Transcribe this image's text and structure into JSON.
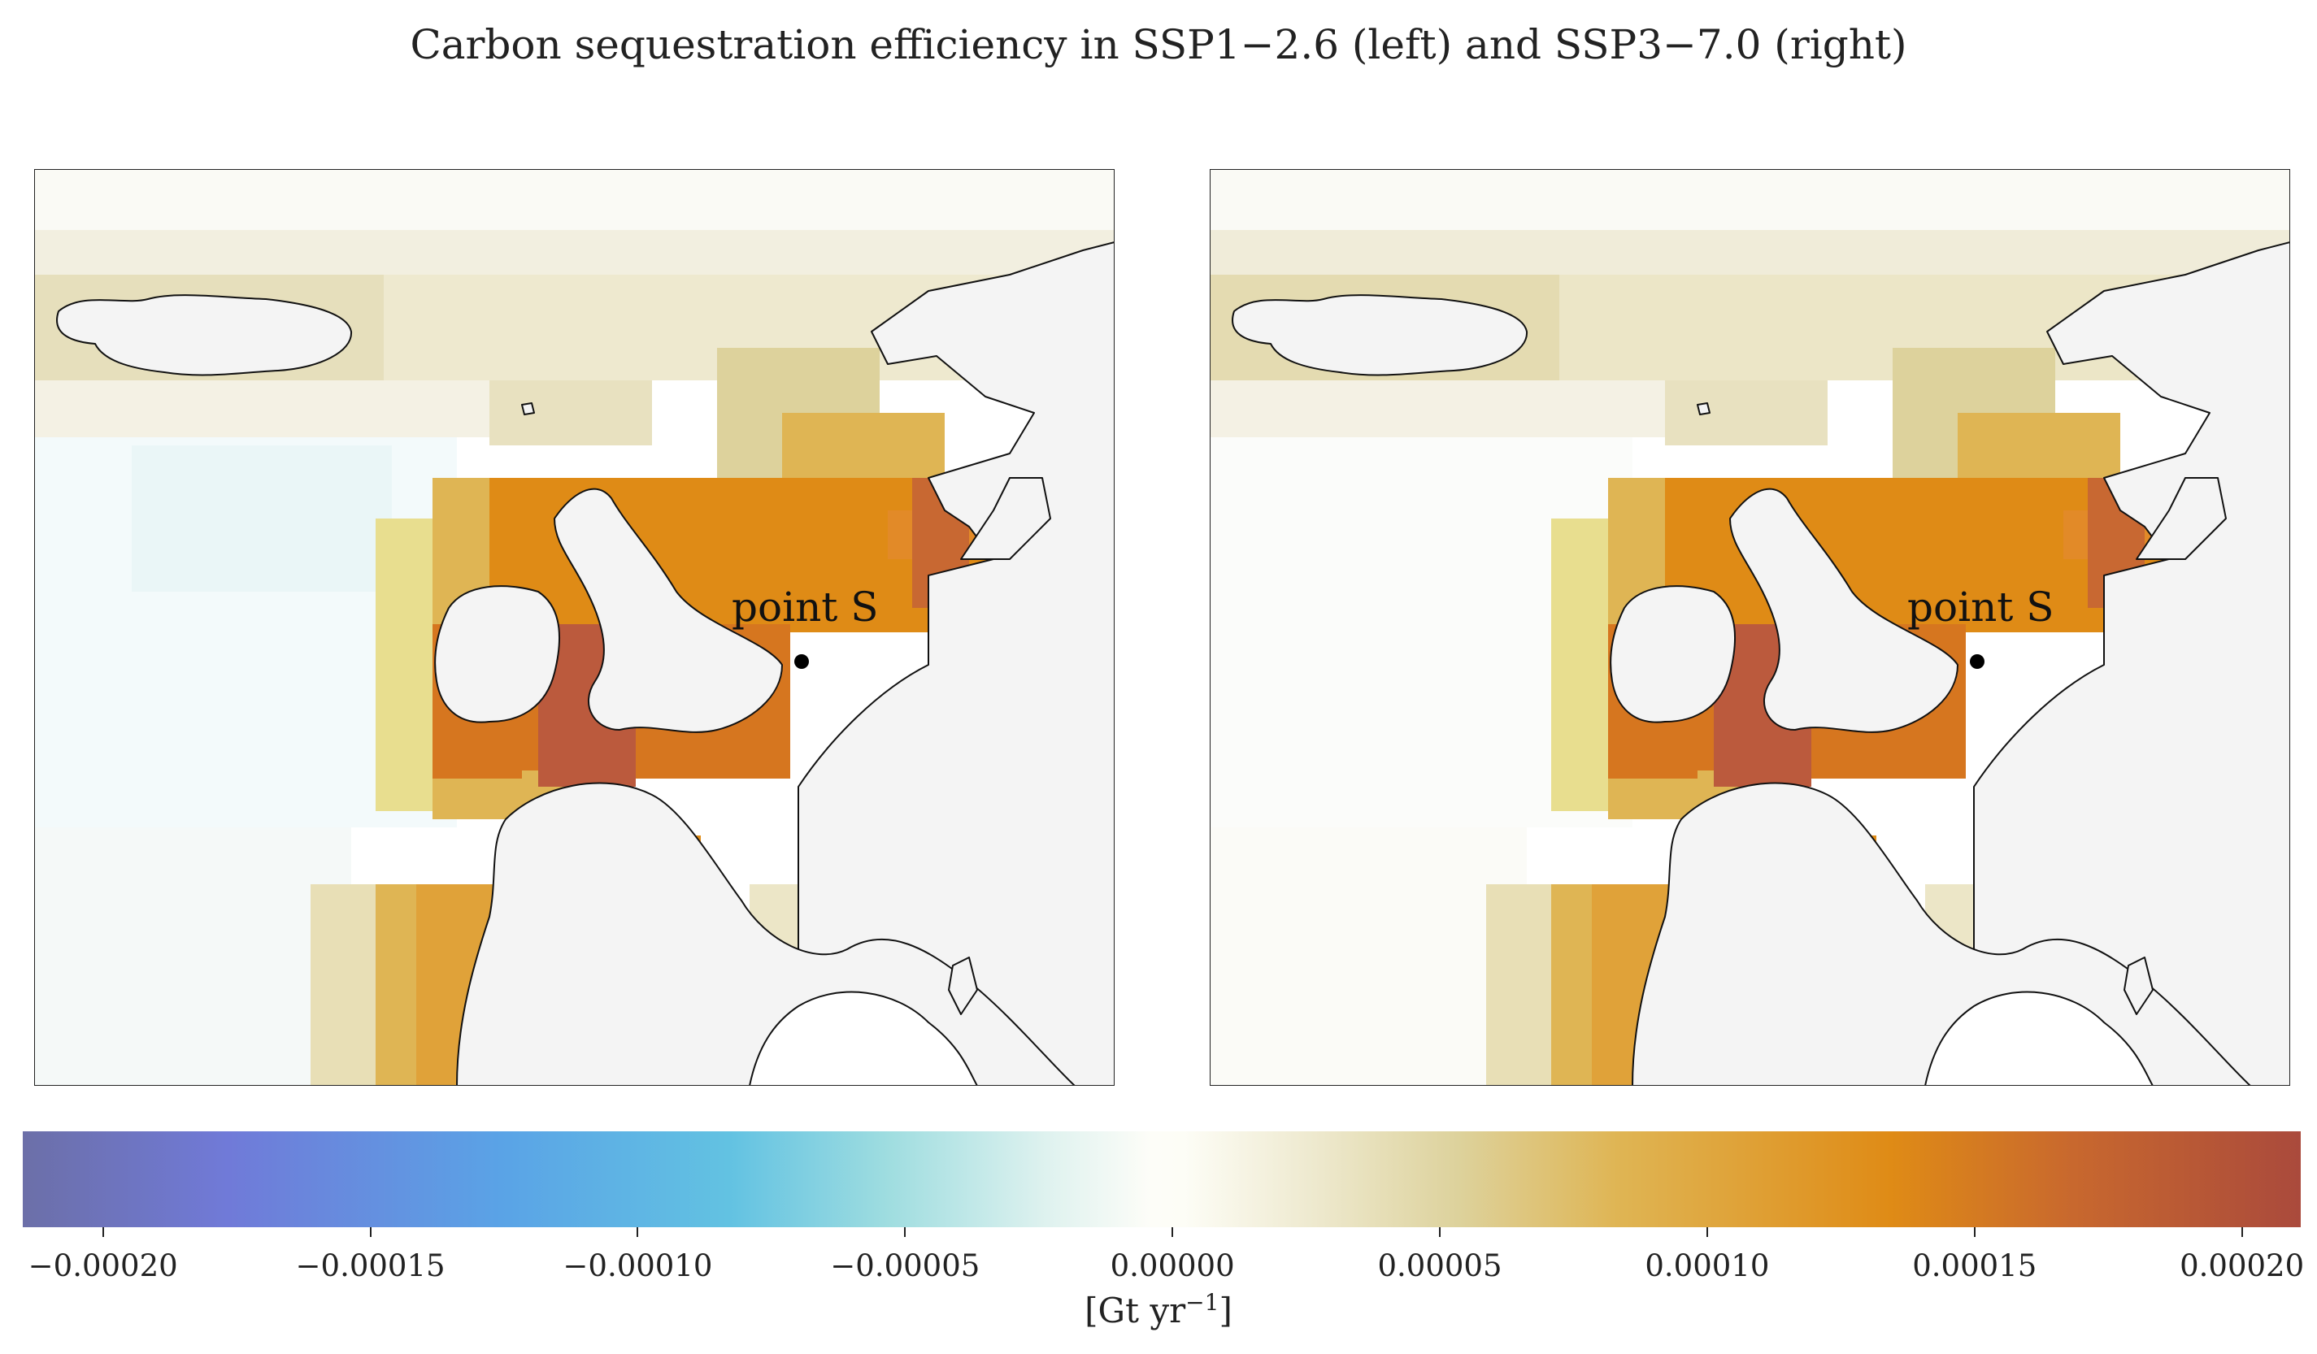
{
  "title": "Carbon sequestration efficiency in SSP1−2.6 (left) and SSP3−7.0 (right)",
  "maps": [
    {
      "scenario": "SSP1-2.6",
      "position": "left",
      "marker_label": "point S"
    },
    {
      "scenario": "SSP3-7.0",
      "position": "right",
      "marker_label": "point S"
    }
  ],
  "colorbar": {
    "label_main": "[Gt yr",
    "label_exp": "−1",
    "label_end": "]",
    "ticks": [
      "−0.00020",
      "−0.00015",
      "−0.00010",
      "−0.00005",
      "0.00000",
      "0.00005",
      "0.00010",
      "0.00015",
      "0.00020"
    ],
    "range": [
      -0.000215,
      0.000211
    ],
    "colors": [
      "#6c6fa8",
      "#707ad8",
      "#5aa3e6",
      "#62c2e2",
      "#9fdde0",
      "#fdfdf8",
      "#ddd29c",
      "#df8b16",
      "#aa4a3c"
    ]
  }
}
